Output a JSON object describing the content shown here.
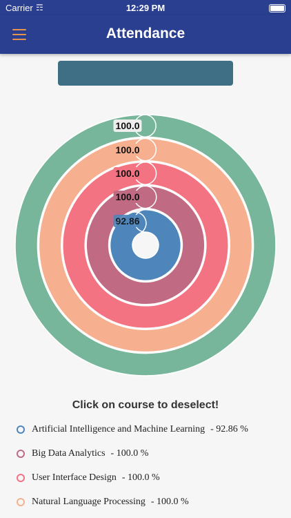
{
  "status_bar": {
    "carrier": "Carrier",
    "time": "12:29 PM"
  },
  "header": {
    "title": "Attendance"
  },
  "instruction": "Click on course to deselect!",
  "percent_suffix": " %",
  "courses": [
    {
      "name": "Artificial Intelligence and Machine Learning",
      "value": "92.86",
      "percent": 92.86,
      "color": "#4e86bc"
    },
    {
      "name": "Big Data Analytics",
      "value": "100.0",
      "percent": 100.0,
      "color": "#c06a84"
    },
    {
      "name": "User Interface Design",
      "value": "100.0",
      "percent": 100.0,
      "color": "#f47382"
    },
    {
      "name": "Natural Language Processing",
      "value": "100.0",
      "percent": 100.0,
      "color": "#f6b08f"
    },
    {
      "name": "",
      "value": "100.0",
      "percent": 100.0,
      "color": "#77b69a"
    }
  ],
  "colors": {
    "header_bg": "#2a3f8f",
    "menu_icon": "#e8944f",
    "banner_bg": "#3f6f84"
  }
}
